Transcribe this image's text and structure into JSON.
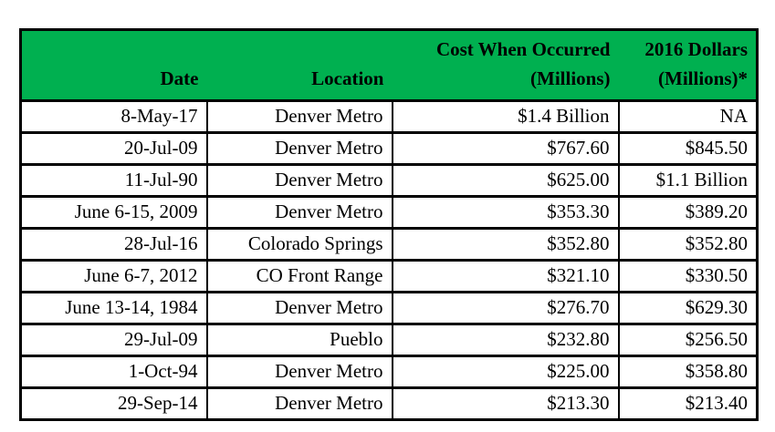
{
  "colors": {
    "header_green": "#00B050",
    "border": "#000000",
    "text": "#000000",
    "background": "#FFFFFF"
  },
  "table": {
    "header": {
      "date": "Date",
      "location": "Location",
      "cost_line1": "Cost When Occurred",
      "cost_line2": "(Millions)",
      "dollars2016_line1": "2016 Dollars",
      "dollars2016_line2": "(Millions)*"
    },
    "rows": [
      {
        "date": "8-May-17",
        "location": "Denver Metro",
        "cost_when_occurred": "$1.4 Billion",
        "dollars_2016": "NA"
      },
      {
        "date": "20-Jul-09",
        "location": "Denver Metro",
        "cost_when_occurred": "$767.60",
        "dollars_2016": "$845.50"
      },
      {
        "date": "11-Jul-90",
        "location": "Denver Metro",
        "cost_when_occurred": "$625.00",
        "dollars_2016": "$1.1 Billion"
      },
      {
        "date": "June 6-15, 2009",
        "location": "Denver Metro",
        "cost_when_occurred": "$353.30",
        "dollars_2016": "$389.20"
      },
      {
        "date": "28-Jul-16",
        "location": "Colorado Springs",
        "cost_when_occurred": "$352.80",
        "dollars_2016": "$352.80"
      },
      {
        "date": "June 6-7, 2012",
        "location": "CO Front Range",
        "cost_when_occurred": "$321.10",
        "dollars_2016": "$330.50"
      },
      {
        "date": "June 13-14, 1984",
        "location": "Denver Metro",
        "cost_when_occurred": "$276.70",
        "dollars_2016": "$629.30"
      },
      {
        "date": "29-Jul-09",
        "location": "Pueblo",
        "cost_when_occurred": "$232.80",
        "dollars_2016": "$256.50"
      },
      {
        "date": "1-Oct-94",
        "location": "Denver Metro",
        "cost_when_occurred": "$225.00",
        "dollars_2016": "$358.80"
      },
      {
        "date": "29-Sep-14",
        "location": "Denver Metro",
        "cost_when_occurred": "$213.30",
        "dollars_2016": "$213.40"
      }
    ]
  },
  "chart_data": {
    "type": "table",
    "columns": [
      "Date",
      "Location",
      "Cost When Occurred (Millions)",
      "2016 Dollars (Millions)*"
    ],
    "rows": [
      [
        "8-May-17",
        "Denver Metro",
        "$1.4 Billion",
        "NA"
      ],
      [
        "20-Jul-09",
        "Denver Metro",
        "$767.60",
        "$845.50"
      ],
      [
        "11-Jul-90",
        "Denver Metro",
        "$625.00",
        "$1.1 Billion"
      ],
      [
        "June 6-15, 2009",
        "Denver Metro",
        "$353.30",
        "$389.20"
      ],
      [
        "28-Jul-16",
        "Colorado Springs",
        "$352.80",
        "$352.80"
      ],
      [
        "June 6-7, 2012",
        "CO Front Range",
        "$321.10",
        "$330.50"
      ],
      [
        "June 13-14, 1984",
        "Denver Metro",
        "$276.70",
        "$629.30"
      ],
      [
        "29-Jul-09",
        "Pueblo",
        "$232.80",
        "$256.50"
      ],
      [
        "1-Oct-94",
        "Denver Metro",
        "$225.00",
        "$358.80"
      ],
      [
        "29-Sep-14",
        "Denver Metro",
        "$213.30",
        "$213.40"
      ]
    ],
    "layout": {
      "header_background": "#00B050",
      "header_text_bold": true,
      "cell_alignment": "right",
      "grid": true
    }
  }
}
